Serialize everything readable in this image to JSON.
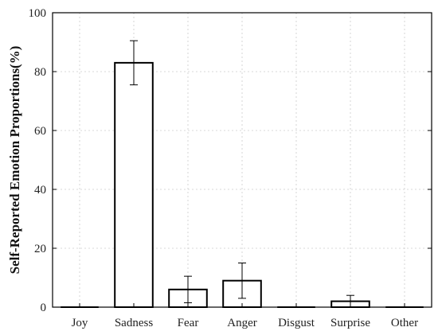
{
  "chart_data": {
    "type": "bar",
    "title": "",
    "xlabel": "",
    "ylabel": "Self-Reported Emotion Proportions(%)",
    "categories": [
      "Joy",
      "Sadness",
      "Fear",
      "Anger",
      "Disgust",
      "Surprise",
      "Other"
    ],
    "values": [
      0,
      83,
      6,
      9,
      0,
      2,
      0
    ],
    "error": [
      0,
      7.5,
      4.5,
      6,
      0,
      2,
      0
    ],
    "ylim": [
      0,
      100
    ],
    "yticks": [
      "0",
      "20",
      "40",
      "60",
      "80",
      "100"
    ],
    "grid": true,
    "legend": "none",
    "colors": {
      "bar_fill": "#ffffff",
      "bar_stroke": "#000000",
      "grid": "#cccccc",
      "axis": "#000000"
    }
  }
}
